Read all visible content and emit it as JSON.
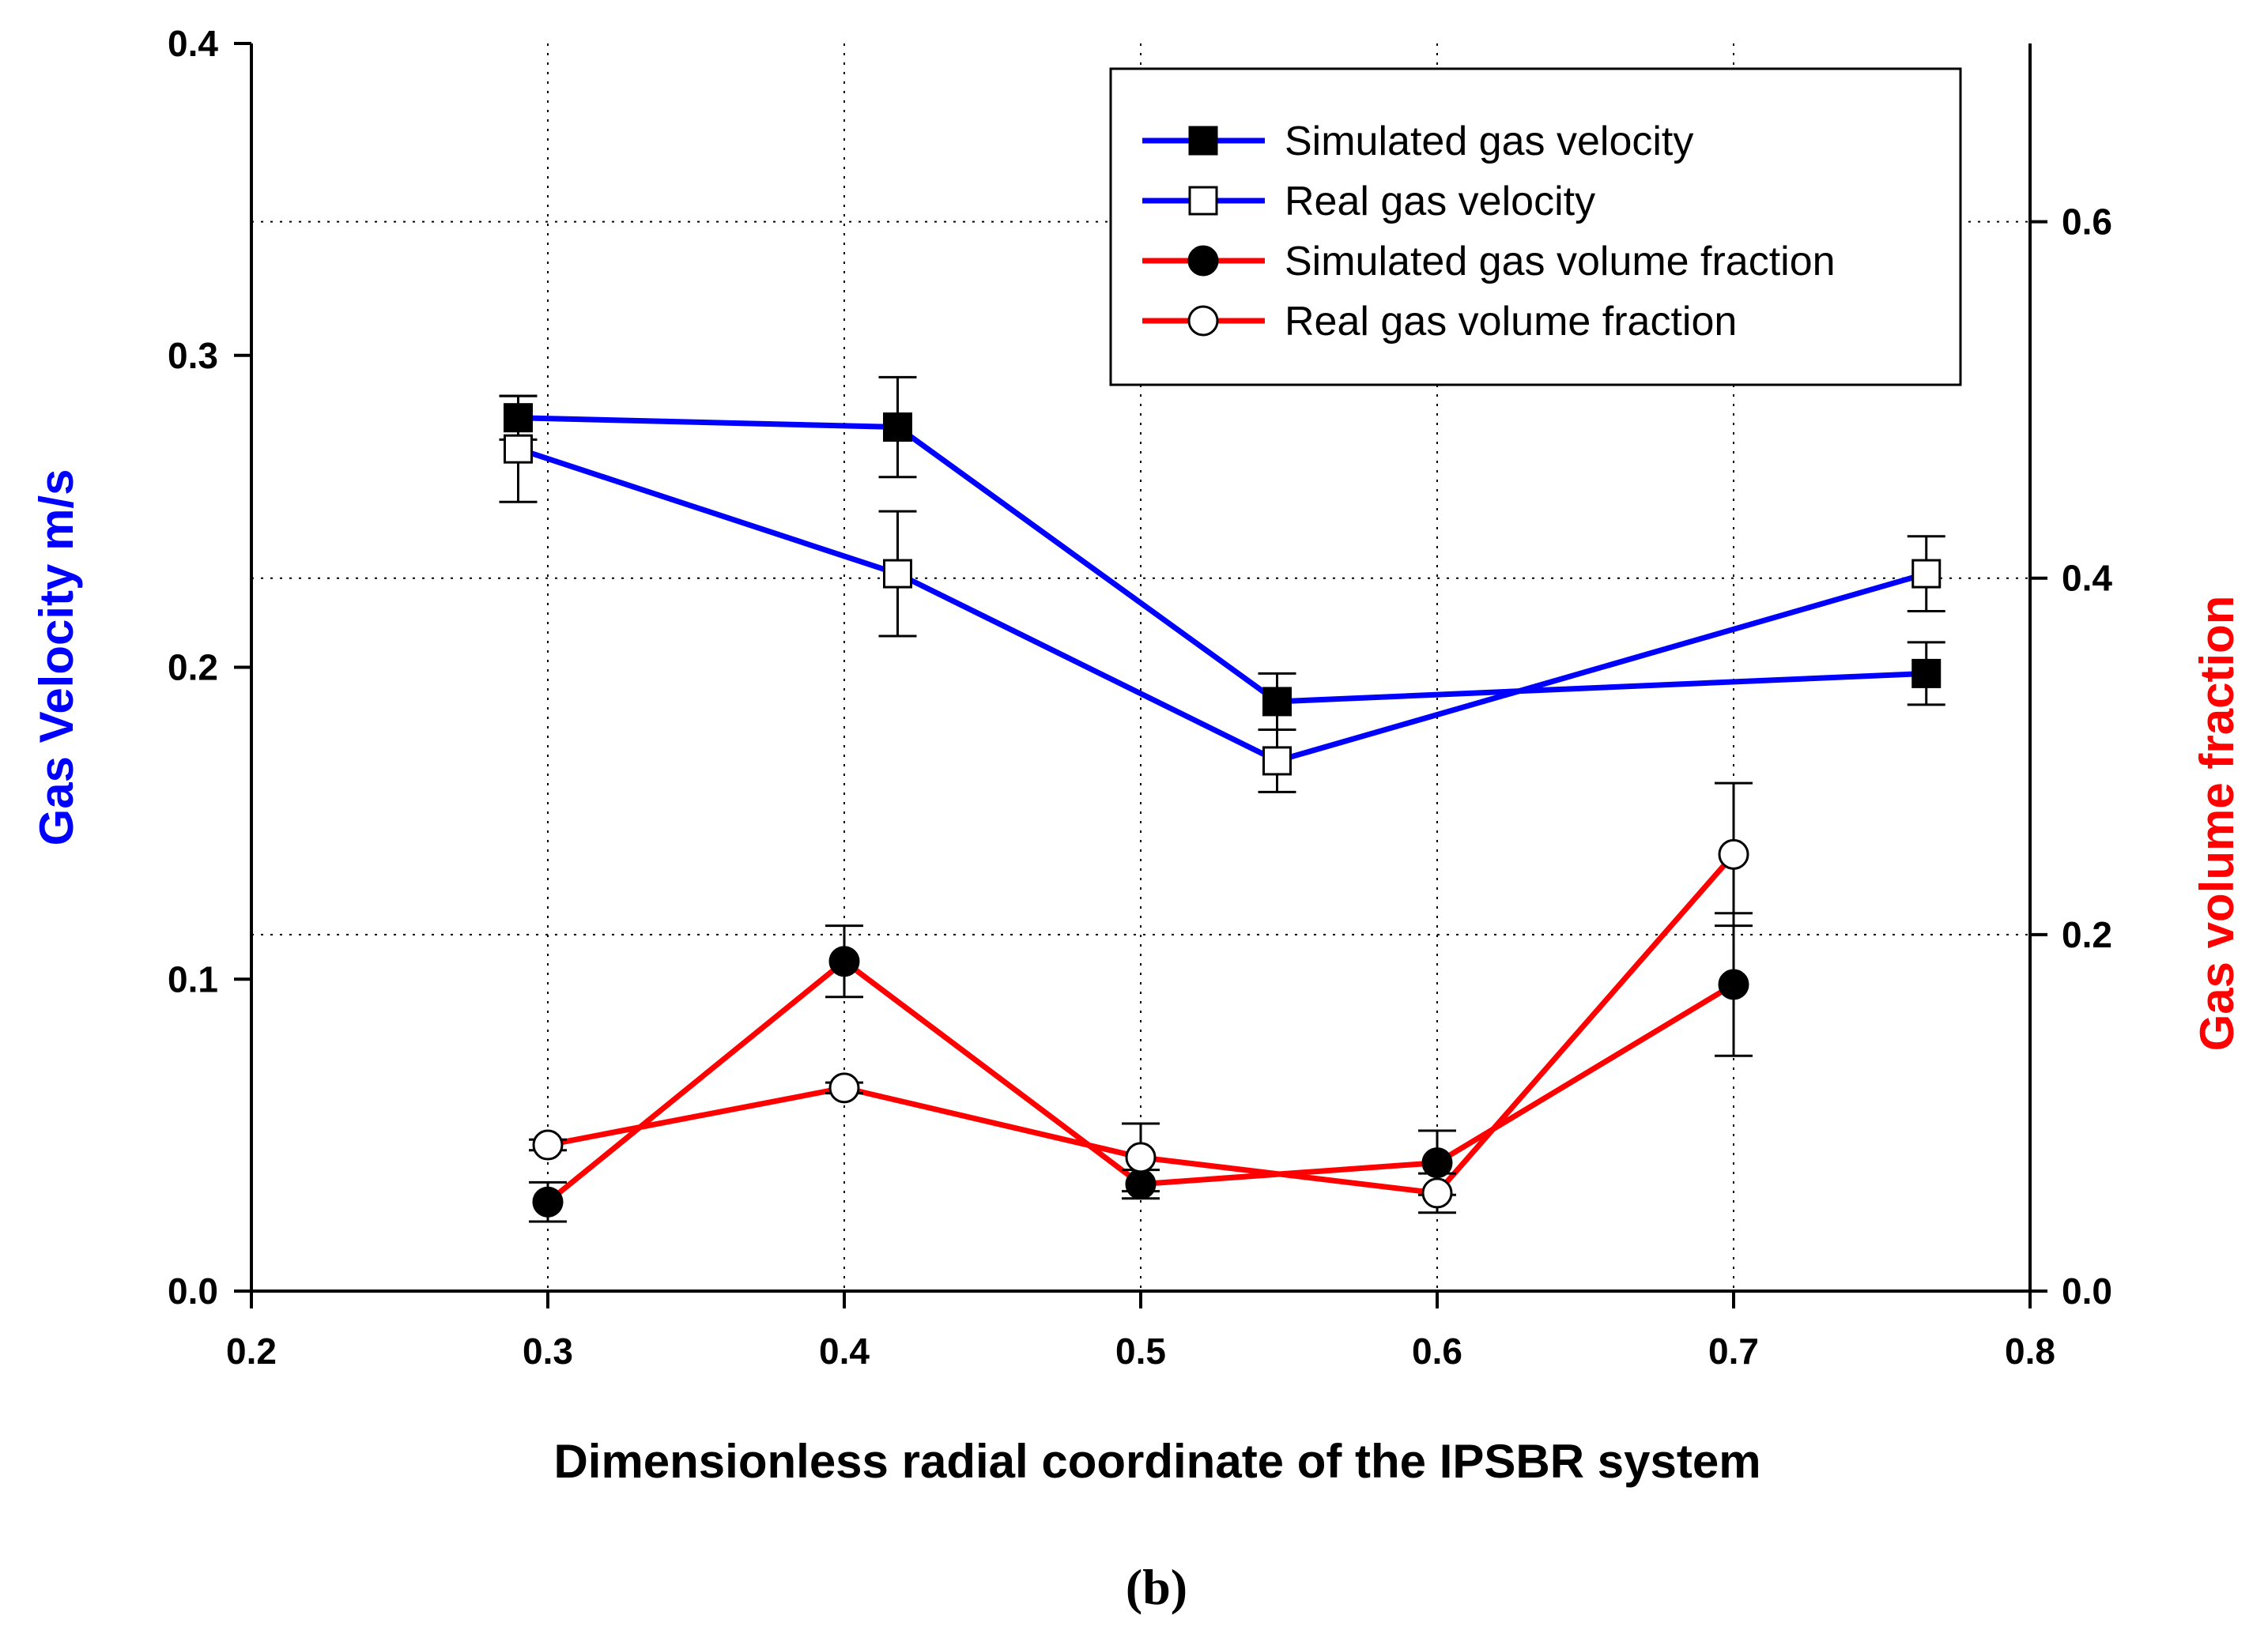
{
  "chart_data": {
    "type": "line",
    "xlabel": "Dimensionless radial coordinate of the IPSBR system",
    "ylabel_left": "Gas Velocity m/s",
    "ylabel_right": "Gas volume fraction",
    "caption": "(b)",
    "xlim": [
      0.2,
      0.8
    ],
    "ylim_left": [
      0.0,
      0.4
    ],
    "ylim_right": [
      0.0,
      0.7
    ],
    "x_ticks": [
      "0.2",
      "0.3",
      "0.4",
      "0.5",
      "0.6",
      "0.7",
      "0.8"
    ],
    "y_left_ticks": [
      "0.0",
      "0.1",
      "0.2",
      "0.3",
      "0.4"
    ],
    "y_right_ticks": [
      "0.0",
      "0.2",
      "0.4",
      "0.6"
    ],
    "grid": "dotted",
    "legend_position": "top-right",
    "colors": {
      "velocity": "#0000ff",
      "fraction": "#ff0000",
      "error_bars": "#000000",
      "marker": "#000000"
    },
    "series": [
      {
        "name": "Simulated gas velocity",
        "axis": "left",
        "color": "#0000ff",
        "marker": "filled-square",
        "x": [
          0.29,
          0.418,
          0.546,
          0.765
        ],
        "y": [
          0.28,
          0.277,
          0.189,
          0.198
        ],
        "err": [
          0.007,
          0.016,
          0.009,
          0.01
        ]
      },
      {
        "name": "Real gas velocity",
        "axis": "left",
        "color": "#0000ff",
        "marker": "open-square",
        "x": [
          0.29,
          0.418,
          0.546,
          0.765
        ],
        "y": [
          0.27,
          0.23,
          0.17,
          0.23
        ],
        "err": [
          0.017,
          0.02,
          0.01,
          0.012
        ]
      },
      {
        "name": "Simulated gas volume fraction",
        "axis": "right",
        "color": "#ff0000",
        "marker": "filled-circle",
        "x": [
          0.3,
          0.4,
          0.5,
          0.6,
          0.7
        ],
        "y": [
          0.05,
          0.185,
          0.06,
          0.072,
          0.172
        ],
        "err": [
          0.011,
          0.02,
          0.008,
          0.018,
          0.04
        ]
      },
      {
        "name": "Real gas volume fraction",
        "axis": "right",
        "color": "#ff0000",
        "marker": "open-circle",
        "x": [
          0.3,
          0.4,
          0.5,
          0.6,
          0.7
        ],
        "y": [
          0.082,
          0.114,
          0.075,
          0.055,
          0.245
        ],
        "err": [
          0.003,
          0.003,
          0.019,
          0.011,
          0.04
        ]
      }
    ]
  }
}
